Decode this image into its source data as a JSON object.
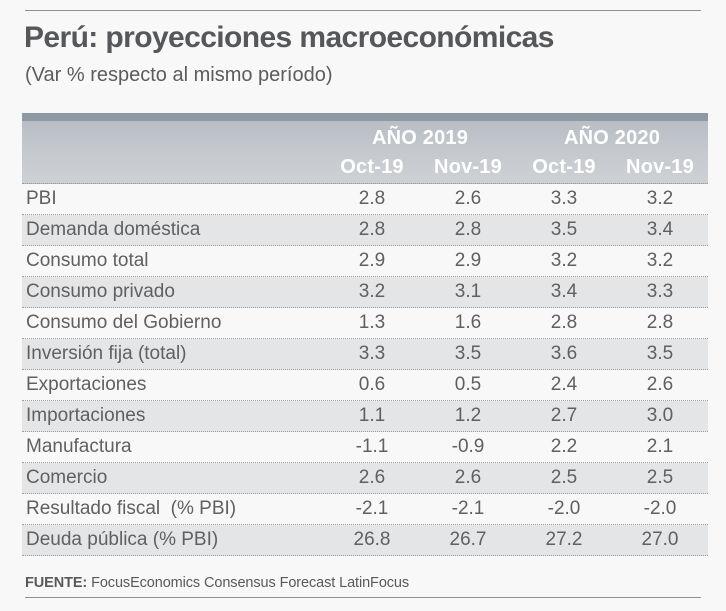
{
  "colors": {
    "background": "#f8f8f8",
    "header_strip": "#8e99a3",
    "header_bg": "#c2c7cc",
    "row_stripe": "#e4e5e7",
    "text": "#5f6063",
    "header_text": "#ffffff"
  },
  "chart_data": {
    "type": "table",
    "title": "Perú: proyecciones macroeconómicas",
    "subtitle": "(Var % respecto al mismo período)",
    "column_groups": [
      "AÑO 2019",
      "AÑO 2020"
    ],
    "columns": [
      "Oct-19",
      "Nov-19",
      "Oct-19",
      "Nov-19"
    ],
    "rows": [
      {
        "label": "PBI",
        "values": [
          "2.8",
          "2.6",
          "3.3",
          "3.2"
        ]
      },
      {
        "label": "Demanda doméstica",
        "values": [
          "2.8",
          "2.8",
          "3.5",
          "3.4"
        ]
      },
      {
        "label": "Consumo total",
        "values": [
          "2.9",
          "2.9",
          "3.2",
          "3.2"
        ]
      },
      {
        "label": "Consumo privado",
        "values": [
          "3.2",
          "3.1",
          "3.4",
          "3.3"
        ]
      },
      {
        "label": "Consumo del Gobierno",
        "values": [
          "1.3",
          "1.6",
          "2.8",
          "2.8"
        ]
      },
      {
        "label": "Inversión fija (total)",
        "values": [
          "3.3",
          "3.5",
          "3.6",
          "3.5"
        ]
      },
      {
        "label": "Exportaciones",
        "values": [
          "0.6",
          "0.5",
          "2.4",
          "2.6"
        ]
      },
      {
        "label": "Importaciones",
        "values": [
          "1.1",
          "1.2",
          "2.7",
          "3.0"
        ]
      },
      {
        "label": "Manufactura",
        "values": [
          "-1.1",
          "-0.9",
          "2.2",
          "2.1"
        ]
      },
      {
        "label": "Comercio",
        "values": [
          "2.6",
          "2.6",
          "2.5",
          "2.5"
        ]
      },
      {
        "label": "Resultado fiscal  (% PBI)",
        "values": [
          "-2.1",
          "-2.1",
          "-2.0",
          "-2.0"
        ]
      },
      {
        "label": "Deuda pública (% PBI)",
        "values": [
          "26.8",
          "26.7",
          "27.2",
          "27.0"
        ]
      }
    ],
    "source_label": "FUENTE:",
    "source_text": "FocusEconomics Consensus Forecast LatinFocus"
  }
}
